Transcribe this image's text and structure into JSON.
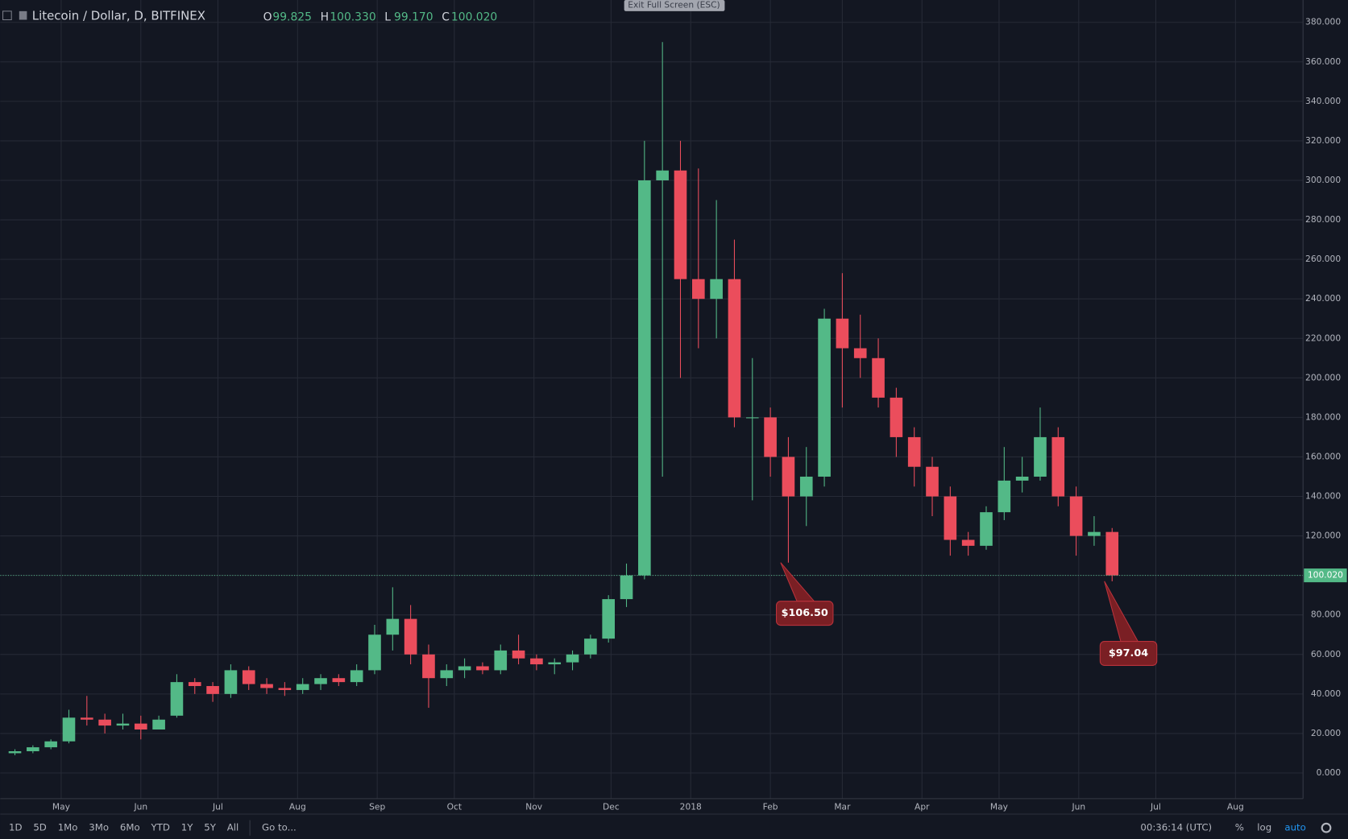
{
  "chart_data": {
    "type": "candlestick",
    "title": "Litecoin / Dollar, D, BITFINEX",
    "ohlc": [
      {
        "key": "O",
        "value": "99.825"
      },
      {
        "key": "H",
        "value": "100.330"
      },
      {
        "key": "L",
        "value": "99.170"
      },
      {
        "key": "C",
        "value": "100.020"
      }
    ],
    "x": [
      -21,
      -14,
      -7,
      0,
      7,
      14,
      21,
      28,
      35,
      42,
      49,
      56,
      63,
      70,
      77,
      84,
      91,
      98,
      105,
      112,
      119,
      126,
      133,
      140,
      147,
      154,
      161,
      168,
      175,
      182,
      189,
      196,
      203,
      210,
      217,
      224,
      231,
      238,
      245,
      252,
      259,
      266,
      273,
      280,
      287,
      294,
      301,
      308,
      315,
      322,
      329,
      336,
      343,
      350,
      357,
      364,
      371,
      378,
      385,
      392,
      399,
      406
    ],
    "open": [
      10,
      11,
      13,
      16,
      28,
      27,
      24,
      25,
      22,
      29,
      46,
      44,
      40,
      52,
      45,
      43,
      42,
      45,
      48,
      46,
      52,
      70,
      78,
      60,
      48,
      52,
      54,
      52,
      62,
      58,
      55,
      56,
      60,
      68,
      88,
      100,
      300,
      305,
      250,
      240,
      250,
      180,
      180,
      160,
      140,
      150,
      230,
      215,
      210,
      190,
      170,
      155,
      140,
      118,
      115,
      132,
      148,
      150,
      170,
      140,
      120,
      122
    ],
    "high": [
      12,
      14,
      17,
      32,
      39,
      30,
      30,
      29,
      29,
      50,
      48,
      46,
      55,
      54,
      48,
      46,
      48,
      50,
      50,
      55,
      75,
      94,
      85,
      65,
      55,
      58,
      56,
      65,
      70,
      60,
      58,
      62,
      70,
      90,
      106,
      320,
      370,
      320,
      306,
      290,
      270,
      210,
      185,
      170,
      165,
      235,
      253,
      232,
      220,
      195,
      175,
      160,
      145,
      122,
      135,
      165,
      160,
      185,
      175,
      145,
      130,
      124
    ],
    "low": [
      9,
      10,
      12,
      15,
      24,
      20,
      22,
      17,
      22,
      28,
      40,
      36,
      38,
      42,
      40,
      39,
      40,
      42,
      44,
      44,
      50,
      62,
      55,
      33,
      44,
      48,
      50,
      50,
      55,
      52,
      50,
      52,
      58,
      66,
      84,
      98,
      150,
      200,
      215,
      220,
      175,
      138,
      150,
      106.5,
      125,
      145,
      185,
      200,
      185,
      160,
      145,
      130,
      110,
      110,
      113,
      128,
      142,
      148,
      135,
      110,
      115,
      97.04
    ],
    "close": [
      11,
      13,
      16,
      28,
      27,
      24,
      25,
      22,
      27,
      46,
      44,
      40,
      52,
      45,
      43,
      42,
      45,
      48,
      46,
      52,
      70,
      78,
      60,
      48,
      52,
      54,
      52,
      62,
      58,
      55,
      56,
      60,
      68,
      88,
      100,
      300,
      305,
      250,
      240,
      250,
      180,
      180,
      160,
      140,
      150,
      230,
      215,
      210,
      190,
      170,
      155,
      140,
      118,
      115,
      132,
      148,
      150,
      170,
      140,
      120,
      122,
      100.02
    ],
    "up_color": "#53b987",
    "down_color": "#eb4d5c",
    "xlim": [
      -23.7,
      483.3
    ],
    "xticks": [
      {
        "value": 0,
        "label": "May"
      },
      {
        "value": 31,
        "label": "Jun"
      },
      {
        "value": 61,
        "label": "Jul"
      },
      {
        "value": 92,
        "label": "Aug"
      },
      {
        "value": 123,
        "label": "Sep"
      },
      {
        "value": 153,
        "label": "Oct"
      },
      {
        "value": 184,
        "label": "Nov"
      },
      {
        "value": 214,
        "label": "Dec"
      },
      {
        "value": 245,
        "label": "2018"
      },
      {
        "value": 276,
        "label": "Feb"
      },
      {
        "value": 304,
        "label": "Mar"
      },
      {
        "value": 335,
        "label": "Apr"
      },
      {
        "value": 365,
        "label": "May"
      },
      {
        "value": 396,
        "label": "Jun"
      },
      {
        "value": 426,
        "label": "Jul"
      },
      {
        "value": 457,
        "label": "Aug"
      }
    ],
    "ylim": [
      -13,
      391.3
    ],
    "yticks": [
      {
        "value": 0,
        "label": "0.000"
      },
      {
        "value": 20,
        "label": "20.000"
      },
      {
        "value": 40,
        "label": "40.000"
      },
      {
        "value": 60,
        "label": "60.000"
      },
      {
        "value": 80,
        "label": "80.000"
      },
      {
        "value": 100,
        "label": "100.000"
      },
      {
        "value": 120,
        "label": "120.000"
      },
      {
        "value": 140,
        "label": "140.000"
      },
      {
        "value": 160,
        "label": "160.000"
      },
      {
        "value": 180,
        "label": "180.000"
      },
      {
        "value": 200,
        "label": "200.000"
      },
      {
        "value": 220,
        "label": "220.000"
      },
      {
        "value": 240,
        "label": "240.000"
      },
      {
        "value": 260,
        "label": "260.000"
      },
      {
        "value": 280,
        "label": "280.000"
      },
      {
        "value": 300,
        "label": "300.000"
      },
      {
        "value": 320,
        "label": "320.000"
      },
      {
        "value": 340,
        "label": "340.000"
      },
      {
        "value": 360,
        "label": "360.000"
      },
      {
        "value": 380,
        "label": "380.000"
      }
    ],
    "grid": true,
    "last_price": {
      "value": 100.02,
      "label": "100.020"
    },
    "annotations": [
      {
        "x": 280,
        "value": 106.5,
        "label": "$106.50"
      },
      {
        "x": 406,
        "value": 97.04,
        "label": "$97.04"
      }
    ]
  },
  "toolbar": {
    "ranges": [
      "1D",
      "5D",
      "1Mo",
      "3Mo",
      "6Mo",
      "YTD",
      "1Y",
      "5Y",
      "All"
    ],
    "goto": "Go to...",
    "clock": "00:36:14 (UTC)",
    "percent": "%",
    "log": "log",
    "auto": "auto"
  },
  "button": "Exit Full Screen (ESC)"
}
